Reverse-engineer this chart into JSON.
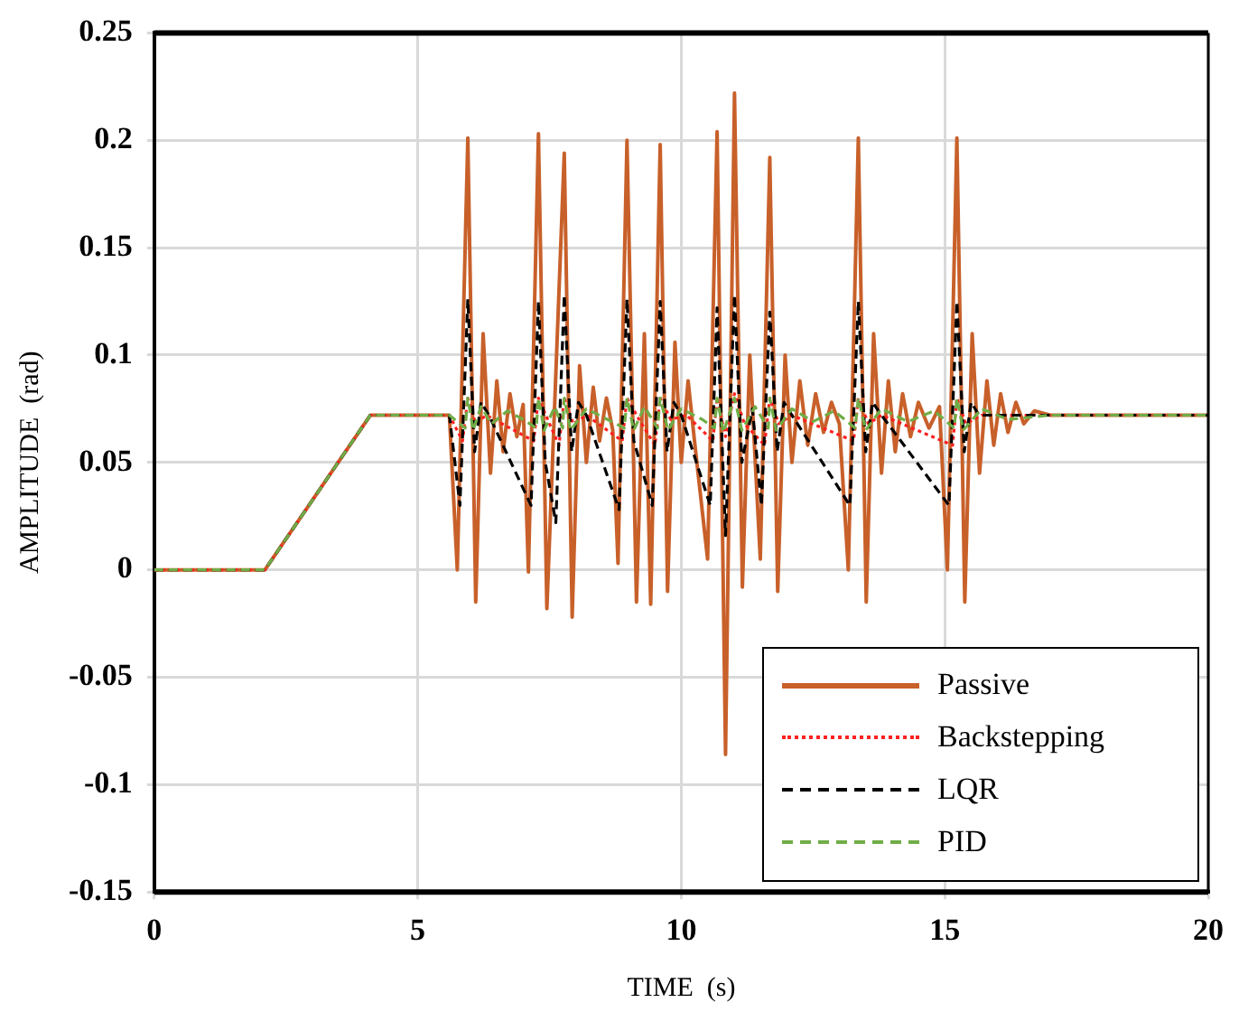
{
  "chart_data": {
    "type": "line",
    "xlabel": "TIME  (s)",
    "ylabel": "AMPLITUDE  (rad)",
    "xlim": [
      0,
      20
    ],
    "xticks": [
      0,
      5,
      10,
      15,
      20
    ],
    "ylim": [
      -0.15,
      0.25
    ],
    "yticks": [
      -0.15,
      -0.1,
      -0.05,
      0,
      0.05,
      0.1,
      0.15,
      0.2,
      0.25
    ],
    "grid": true,
    "legend": "bottom right",
    "marker": "none",
    "series": [
      {
        "name": "Passive",
        "color": "#c8602a",
        "line_style": "solid",
        "x": [
          0,
          2.1,
          4.1,
          5.6,
          5.75,
          5.95,
          6.1,
          6.24,
          6.38,
          6.5,
          6.62,
          6.75,
          6.88,
          7.0,
          7.1,
          7.29,
          7.45,
          7.78,
          7.93,
          8.07,
          8.2,
          8.33,
          8.45,
          8.58,
          8.7,
          8.8,
          8.97,
          9.15,
          9.3,
          9.42,
          9.6,
          9.74,
          9.88,
          10.0,
          10.13,
          10.26,
          10.5,
          10.68,
          10.84,
          11.01,
          11.16,
          11.3,
          11.5,
          11.68,
          11.83,
          11.97,
          12.1,
          12.25,
          12.4,
          12.55,
          12.7,
          12.85,
          13.0,
          13.17,
          13.36,
          13.51,
          13.65,
          13.8,
          13.93,
          14.06,
          14.2,
          14.35,
          14.5,
          14.7,
          14.9,
          15.05,
          15.23,
          15.38,
          15.52,
          15.66,
          15.8,
          15.93,
          16.06,
          16.2,
          16.35,
          16.5,
          16.7,
          17.0,
          20
        ],
        "values": [
          0,
          0,
          0.072,
          0.072,
          0.0,
          0.201,
          -0.015,
          0.11,
          0.045,
          0.088,
          0.055,
          0.082,
          0.062,
          0.077,
          -0.001,
          0.203,
          -0.018,
          0.194,
          -0.022,
          0.095,
          0.05,
          0.085,
          0.06,
          0.08,
          0.065,
          0.003,
          0.2,
          -0.015,
          0.11,
          -0.016,
          0.198,
          -0.01,
          0.106,
          0.05,
          0.088,
          0.058,
          0.005,
          0.204,
          -0.086,
          0.222,
          -0.008,
          0.1,
          0.005,
          0.192,
          -0.01,
          0.1,
          0.05,
          0.088,
          0.058,
          0.082,
          0.064,
          0.078,
          0.068,
          0.0,
          0.201,
          -0.015,
          0.11,
          0.045,
          0.088,
          0.055,
          0.082,
          0.062,
          0.078,
          0.066,
          0.076,
          0.0,
          0.201,
          -0.015,
          0.11,
          0.045,
          0.088,
          0.058,
          0.082,
          0.064,
          0.078,
          0.068,
          0.074,
          0.072,
          0.072
        ]
      },
      {
        "name": "Backstepping",
        "color": "#ff2020",
        "line_style": "dotted",
        "x": [
          0,
          2.1,
          4.1,
          5.6,
          5.85,
          5.95,
          6.1,
          6.3,
          7.2,
          7.29,
          7.5,
          7.68,
          7.78,
          7.95,
          8.2,
          8.88,
          8.97,
          9.2,
          9.5,
          9.6,
          9.8,
          10.1,
          10.6,
          10.68,
          10.84,
          11.01,
          11.2,
          11.58,
          11.68,
          11.85,
          12.1,
          13.27,
          13.36,
          13.55,
          13.8,
          15.15,
          15.23,
          15.4,
          15.7,
          20
        ],
        "values": [
          0,
          0,
          0.072,
          0.072,
          0.06,
          0.08,
          0.068,
          0.072,
          0.06,
          0.08,
          0.068,
          0.058,
          0.08,
          0.068,
          0.072,
          0.06,
          0.08,
          0.07,
          0.058,
          0.08,
          0.07,
          0.072,
          0.06,
          0.08,
          0.062,
          0.082,
          0.068,
          0.058,
          0.08,
          0.068,
          0.072,
          0.06,
          0.08,
          0.068,
          0.072,
          0.058,
          0.08,
          0.068,
          0.072,
          0.072
        ]
      },
      {
        "name": "LQR",
        "color": "#000000",
        "line_style": "dashed",
        "x": [
          0,
          2.1,
          4.1,
          5.6,
          5.8,
          5.95,
          6.08,
          6.2,
          6.35,
          7.15,
          7.29,
          7.42,
          7.62,
          7.78,
          7.92,
          8.05,
          8.2,
          8.82,
          8.97,
          9.1,
          9.45,
          9.6,
          9.73,
          9.86,
          10.0,
          10.55,
          10.68,
          10.84,
          11.01,
          11.15,
          11.35,
          11.52,
          11.68,
          11.82,
          11.95,
          12.1,
          13.2,
          13.36,
          13.5,
          13.63,
          13.8,
          15.08,
          15.23,
          15.37,
          15.5,
          15.65,
          20
        ],
        "values": [
          0,
          0,
          0.072,
          0.072,
          0.03,
          0.126,
          0.055,
          0.078,
          0.072,
          0.03,
          0.125,
          0.05,
          0.022,
          0.128,
          0.055,
          0.078,
          0.072,
          0.028,
          0.126,
          0.06,
          0.03,
          0.125,
          0.055,
          0.078,
          0.072,
          0.03,
          0.122,
          0.016,
          0.128,
          0.05,
          0.075,
          0.03,
          0.12,
          0.055,
          0.078,
          0.072,
          0.03,
          0.125,
          0.055,
          0.078,
          0.072,
          0.03,
          0.125,
          0.055,
          0.078,
          0.072,
          0.072
        ]
      },
      {
        "name": "PID",
        "color": "#70ad47",
        "line_style": "dashed",
        "x": [
          0,
          2.1,
          4.1,
          5.6,
          5.9,
          5.95,
          6.05,
          6.2,
          6.4,
          6.7,
          7.0,
          7.25,
          7.29,
          7.4,
          7.6,
          7.75,
          7.78,
          7.9,
          8.2,
          8.6,
          8.92,
          8.97,
          9.1,
          9.3,
          9.55,
          9.6,
          9.75,
          10.0,
          10.4,
          10.63,
          10.68,
          10.8,
          11.01,
          11.15,
          11.4,
          11.65,
          11.68,
          11.8,
          12.1,
          12.5,
          12.9,
          13.3,
          13.36,
          13.5,
          13.8,
          14.3,
          14.8,
          15.18,
          15.23,
          15.35,
          15.7,
          16.2,
          17.0,
          20
        ],
        "values": [
          0,
          0,
          0.072,
          0.072,
          0.066,
          0.08,
          0.065,
          0.076,
          0.068,
          0.074,
          0.07,
          0.066,
          0.08,
          0.065,
          0.076,
          0.066,
          0.08,
          0.065,
          0.075,
          0.07,
          0.066,
          0.08,
          0.065,
          0.076,
          0.066,
          0.08,
          0.065,
          0.075,
          0.07,
          0.066,
          0.08,
          0.064,
          0.08,
          0.065,
          0.076,
          0.066,
          0.08,
          0.065,
          0.075,
          0.069,
          0.074,
          0.066,
          0.08,
          0.065,
          0.075,
          0.069,
          0.074,
          0.066,
          0.08,
          0.065,
          0.075,
          0.07,
          0.072,
          0.072
        ]
      }
    ]
  }
}
